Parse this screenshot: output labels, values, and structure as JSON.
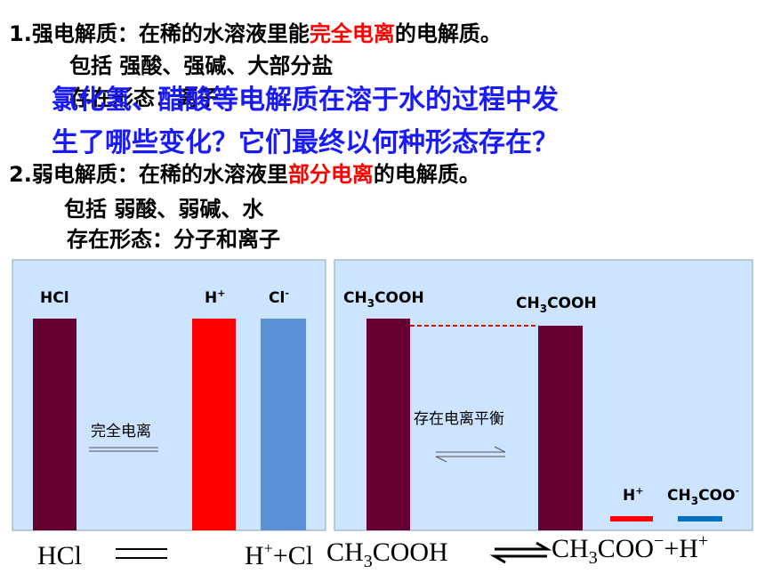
{
  "strong": {
    "prefix": "1.强电解质：在稀的水溶液里能",
    "highlight": "完全电离",
    "suffix": "的电解质。",
    "includes": "包括  强酸、强碱、大部分盐",
    "form": "存在形态：离子"
  },
  "question": [
    "氯化氢、醋酸等电解质在溶于水的过程中发",
    "生了哪些变化？它们最终以何种形态存在？"
  ],
  "weak": {
    "prefix": "2.弱电解质：在稀的水溶液里",
    "highlight": "部分电离",
    "suffix": "的电解质。",
    "includes": "包括  弱酸、弱碱、水",
    "form": "存在形态：分子和离子"
  },
  "left_panel": {
    "hcl": "HCl",
    "h": {
      "base": "H",
      "sup": "+"
    },
    "cl": {
      "base": "Cl",
      "sup": "-"
    },
    "note": "完全电离"
  },
  "right_panel": {
    "acid": {
      "a": "CH",
      "sub": "3",
      "b": "COOH"
    },
    "acid_right": {
      "a": "CH",
      "sub": "3",
      "b": "COOH"
    },
    "note": "存在电离平衡",
    "h": {
      "base": "H",
      "sup": "+"
    },
    "acetate": {
      "a": "CH",
      "sub": "3",
      "b": "COO",
      "sup": "-"
    }
  },
  "equations": {
    "hcl": "HCl",
    "products": {
      "h": "H",
      "sup": "+",
      "rest": "+Cl"
    },
    "acid": {
      "a": "CH",
      "sub": "3",
      "b": "COOH"
    },
    "ions": {
      "a": "CH",
      "sub": "3",
      "b": "COO",
      "sup": "−",
      "rest": "+H",
      "sup2": "+"
    }
  }
}
